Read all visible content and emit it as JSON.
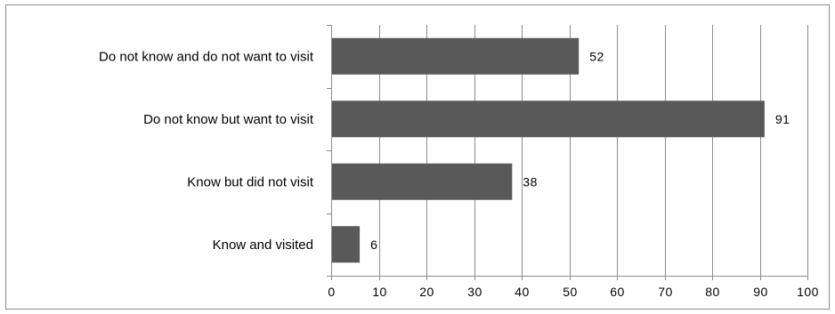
{
  "chart_data": {
    "type": "bar",
    "orientation": "horizontal",
    "title": "",
    "xlabel": "",
    "ylabel": "",
    "categories": [
      "Do not know and do not want to visit",
      "Do not know but want to visit",
      "Know but did not visit",
      "Know and visited"
    ],
    "values": [
      52,
      91,
      38,
      6
    ],
    "data_labels": [
      "52",
      "91",
      "38",
      "6"
    ],
    "xlim": [
      0,
      100
    ],
    "x_ticks": [
      "0",
      "10",
      "20",
      "30",
      "40",
      "50",
      "60",
      "70",
      "80",
      "90",
      "100"
    ],
    "grid": "vertical gridlines",
    "legend": "none",
    "colors": {
      "bar": "#595959",
      "grid": "#8c8c8c",
      "axis": "#8c8c8c",
      "frame": "#8c8c8c",
      "text": "#000000"
    }
  }
}
